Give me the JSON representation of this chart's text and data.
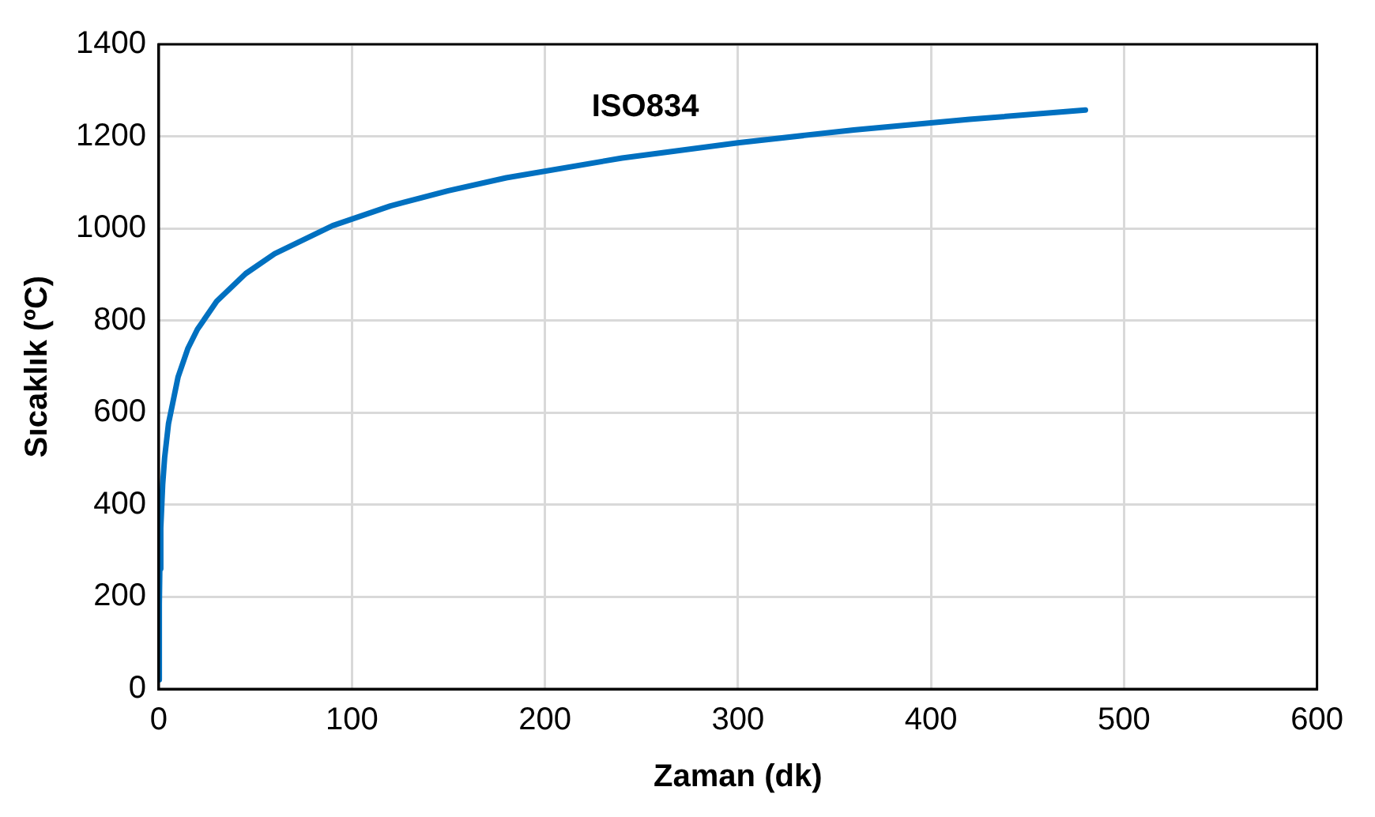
{
  "chart_data": {
    "type": "line",
    "xlabel": "Zaman (dk)",
    "ylabel": "Sıcaklık (ºC)",
    "x": [
      0,
      0.25,
      0.5,
      1,
      2,
      3,
      5,
      10,
      15,
      20,
      30,
      45,
      60,
      90,
      120,
      150,
      180,
      240,
      300,
      360,
      420,
      480
    ],
    "series": [
      {
        "name": "ISO834",
        "color": "#0070c0",
        "values": [
          20,
          185,
          261,
          349,
          445,
          502,
          576,
          678,
          739,
          781,
          842,
          902,
          945,
          1006,
          1049,
          1082,
          1110,
          1153,
          1186,
          1214,
          1237,
          1257
        ]
      }
    ],
    "xlim": [
      0,
      600
    ],
    "xticks": [
      0,
      100,
      200,
      300,
      400,
      500,
      600
    ],
    "ylim": [
      0,
      1400
    ],
    "yticks": [
      0,
      200,
      400,
      600,
      800,
      1000,
      1200,
      1400
    ],
    "grid": true,
    "legend": false,
    "marker": "none",
    "line_style": "solid"
  }
}
